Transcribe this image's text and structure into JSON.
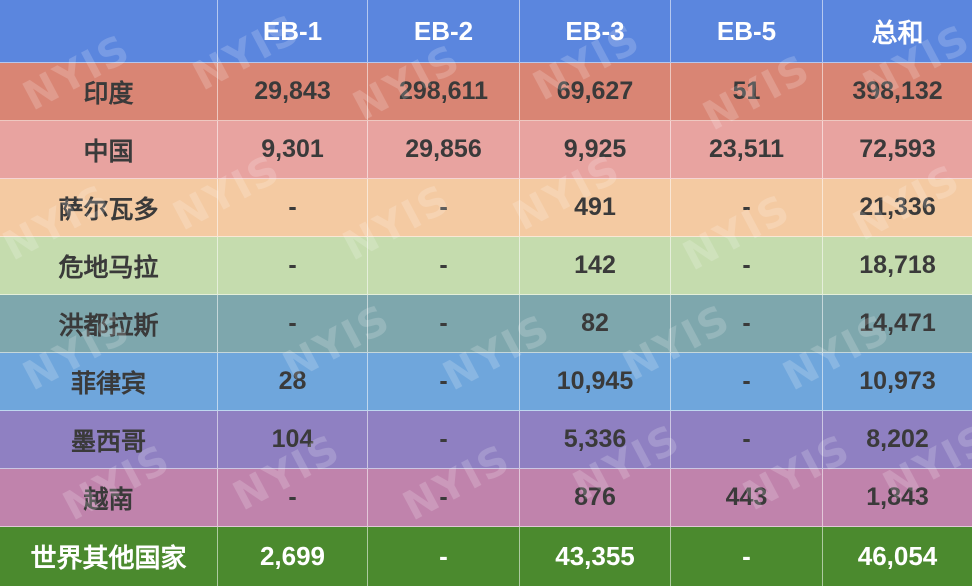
{
  "colors": {
    "header": "#5b86de",
    "india": "#d98574",
    "china": "#e8a3a0",
    "el_salvador": "#f4caa2",
    "guatemala": "#c5dcae",
    "honduras": "#7ea7ad",
    "philippines": "#6fa6dc",
    "mexico": "#8f80c2",
    "vietnam": "#c083ac",
    "rest_of_world": "#4b8a2e"
  },
  "header": {
    "corner": "",
    "columns": [
      "EB-1",
      "EB-2",
      "EB-3",
      "EB-5",
      "总和"
    ]
  },
  "rows": [
    {
      "name": "印度",
      "values": [
        "29,843",
        "298,611",
        "69,627",
        "51",
        "398,132"
      ]
    },
    {
      "name": "中国",
      "values": [
        "9,301",
        "29,856",
        "9,925",
        "23,511",
        "72,593"
      ]
    },
    {
      "name": "萨尔瓦多",
      "values": [
        "-",
        "-",
        "491",
        "-",
        "21,336"
      ]
    },
    {
      "name": "危地马拉",
      "values": [
        "-",
        "-",
        "142",
        "-",
        "18,718"
      ]
    },
    {
      "name": "洪都拉斯",
      "values": [
        "-",
        "-",
        "82",
        "-",
        "14,471"
      ]
    },
    {
      "name": "菲律宾",
      "values": [
        "28",
        "-",
        "10,945",
        "-",
        "10,973"
      ]
    },
    {
      "name": "墨西哥",
      "values": [
        "104",
        "-",
        "5,336",
        "-",
        "8,202"
      ]
    },
    {
      "name": "越南",
      "values": [
        "-",
        "-",
        "876",
        "443",
        "1,843"
      ]
    },
    {
      "name": "世界其他国家",
      "values": [
        "2,699",
        "-",
        "43,355",
        "-",
        "46,054"
      ]
    }
  ],
  "watermark": "NYIS"
}
